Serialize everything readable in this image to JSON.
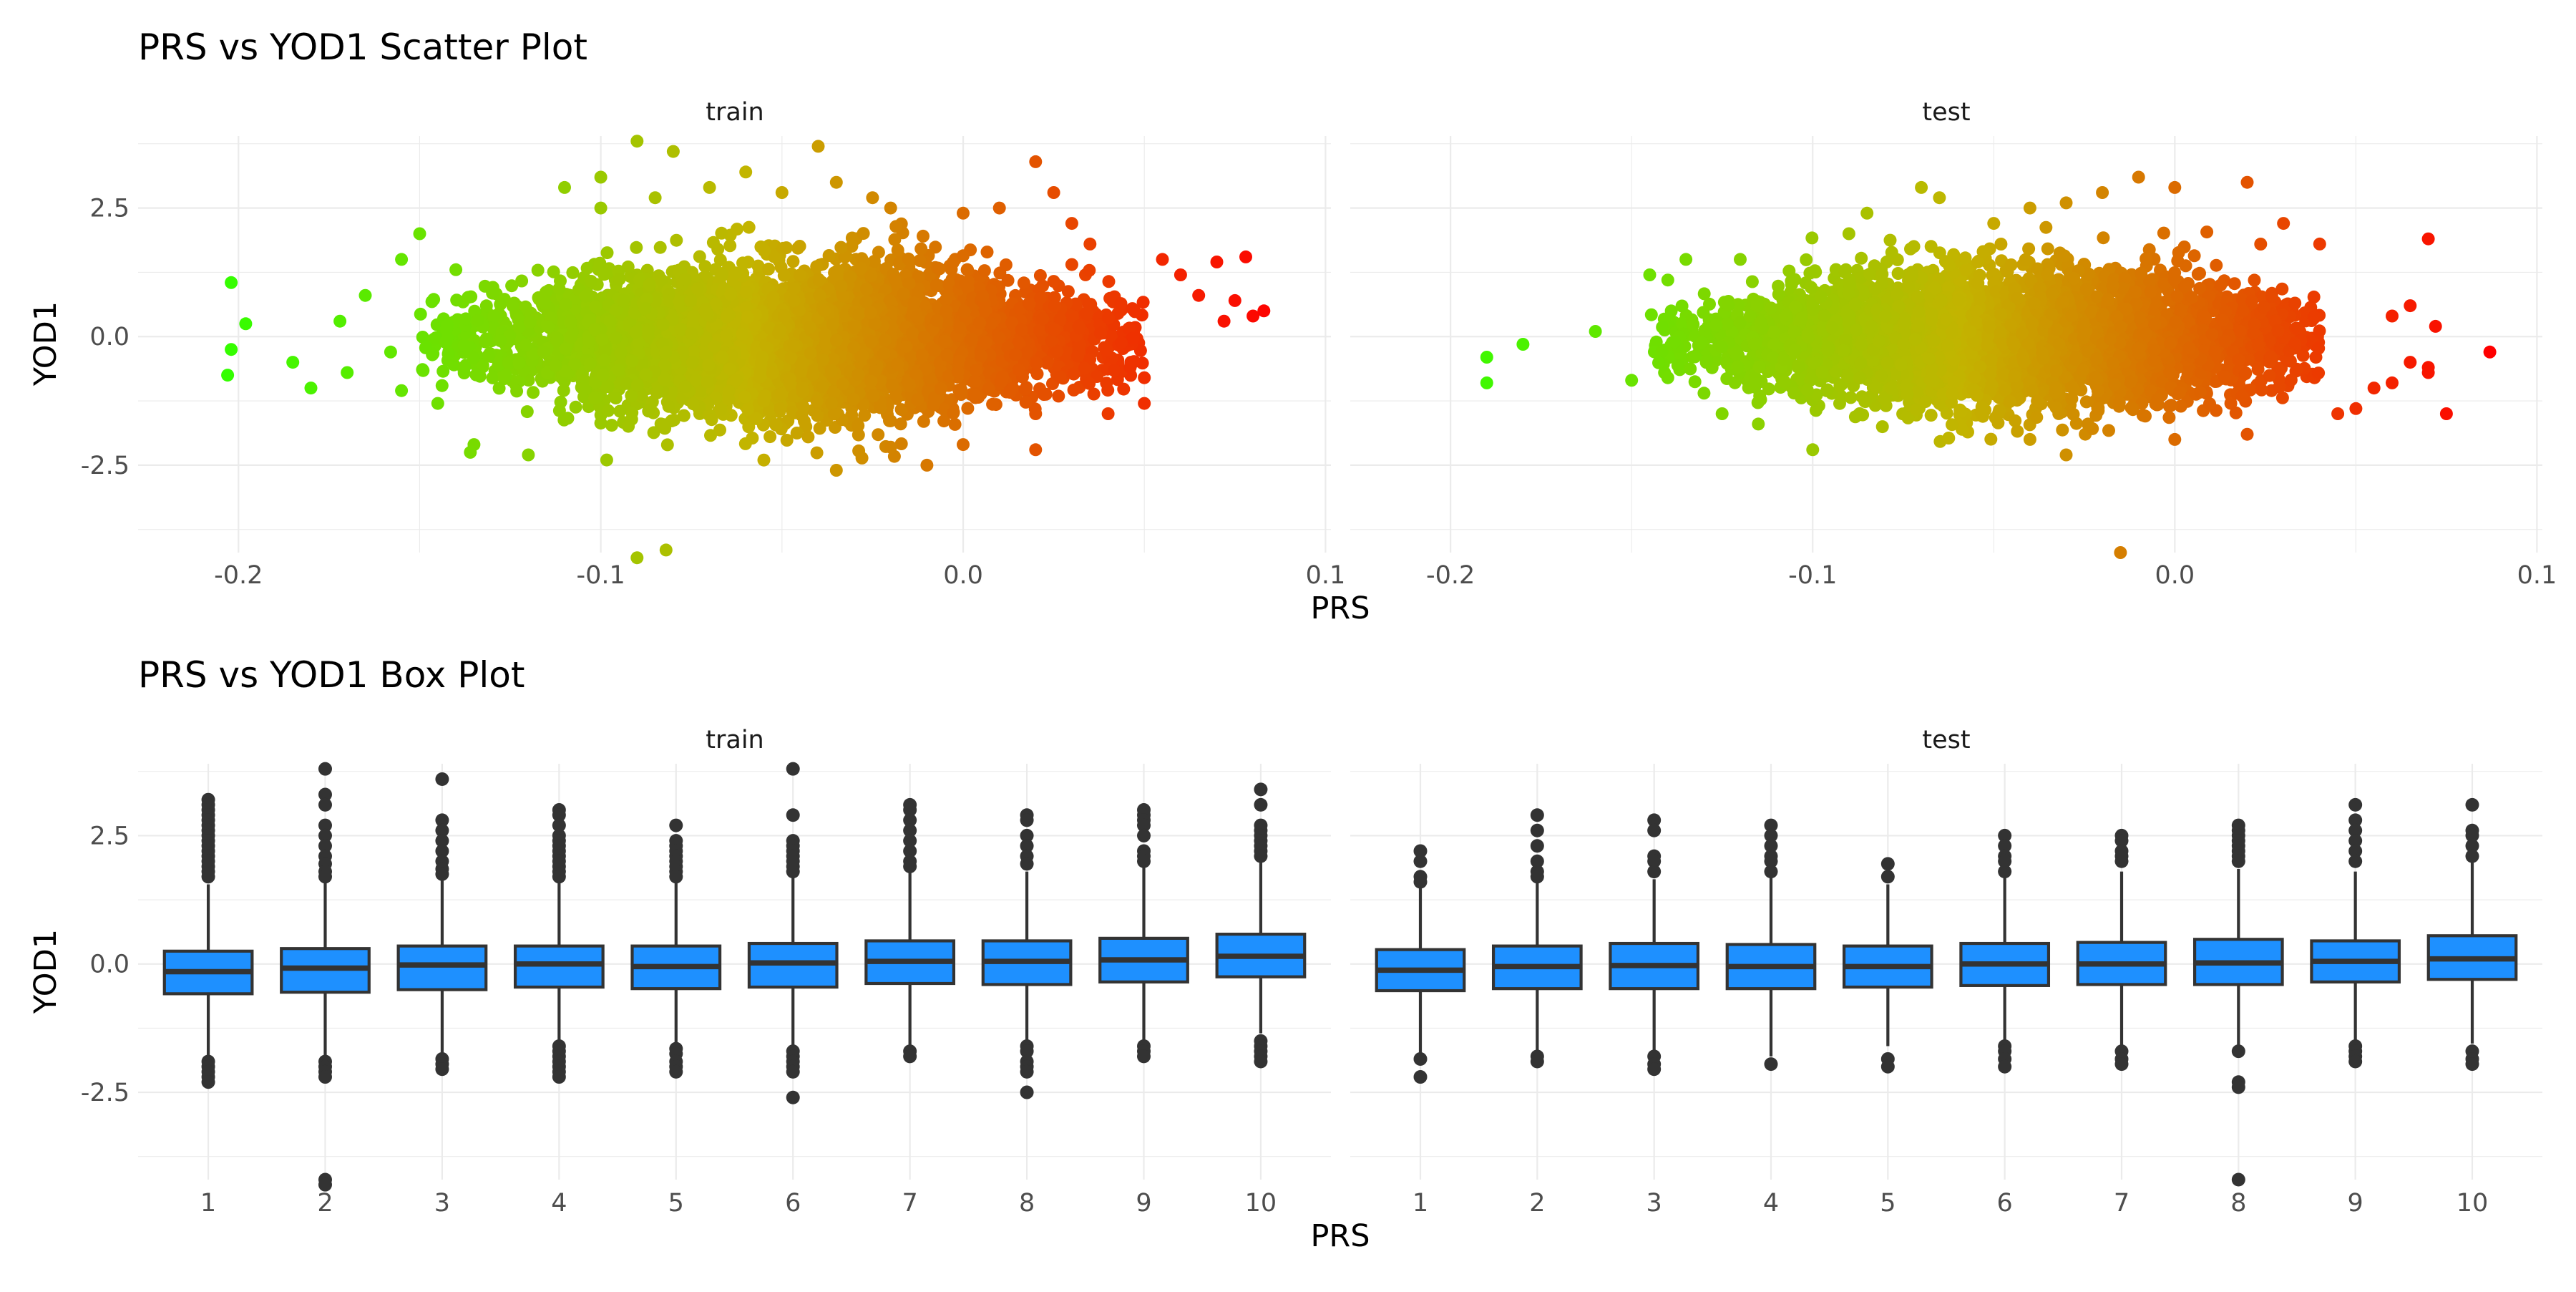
{
  "chart_data": [
    {
      "type": "scatter",
      "title": "PRS vs YOD1 Scatter Plot",
      "xlabel": "PRS",
      "ylabel": "YOD1",
      "color_scale": {
        "low": "#32ff00",
        "mid": "#c3b400",
        "high": "#ff0000"
      },
      "grid": true,
      "legend": "none",
      "panels": [
        {
          "label": "train",
          "xlim": [
            -0.2,
            0.1
          ],
          "ylim": [
            -4.2,
            3.9
          ],
          "x_ticks": [
            -0.2,
            -0.1,
            0.0,
            0.1
          ],
          "x_tick_labels": [
            "-0.2",
            "-0.1",
            "0.0",
            "0.1"
          ],
          "y_ticks": [
            -2.5,
            0.0,
            2.5
          ],
          "y_tick_labels": [
            "-2.5",
            "0.0",
            "2.5"
          ],
          "core_cloud": {
            "x_range": [
              -0.15,
              0.05
            ],
            "x_center": -0.045,
            "y_center": -0.05,
            "y_sd": 0.7
          },
          "points": [
            [
              -0.202,
              1.05
            ],
            [
              -0.198,
              0.25
            ],
            [
              -0.202,
              -0.25
            ],
            [
              -0.203,
              -0.75
            ],
            [
              -0.185,
              -0.5
            ],
            [
              -0.18,
              -1.0
            ],
            [
              -0.17,
              -0.7
            ],
            [
              -0.172,
              0.3
            ],
            [
              -0.165,
              0.8
            ],
            [
              -0.158,
              -0.3
            ],
            [
              -0.155,
              -1.05
            ],
            [
              -0.15,
              2.0
            ],
            [
              -0.155,
              1.5
            ],
            [
              -0.145,
              -1.3
            ],
            [
              -0.14,
              1.3
            ],
            [
              -0.135,
              -2.1
            ],
            [
              -0.136,
              -2.25
            ],
            [
              -0.12,
              -2.3
            ],
            [
              -0.11,
              2.9
            ],
            [
              -0.1,
              3.1
            ],
            [
              -0.1,
              2.5
            ],
            [
              -0.09,
              3.8
            ],
            [
              -0.08,
              3.6
            ],
            [
              -0.085,
              2.7
            ],
            [
              -0.09,
              -4.3
            ],
            [
              -0.082,
              -4.15
            ],
            [
              -0.07,
              2.9
            ],
            [
              -0.06,
              3.2
            ],
            [
              -0.05,
              2.8
            ],
            [
              -0.04,
              3.7
            ],
            [
              -0.035,
              3.0
            ],
            [
              -0.025,
              2.7
            ],
            [
              -0.02,
              2.5
            ],
            [
              -0.035,
              -2.6
            ],
            [
              -0.055,
              -2.4
            ],
            [
              -0.02,
              -2.15
            ],
            [
              -0.01,
              -2.5
            ],
            [
              0.0,
              -2.1
            ],
            [
              0.0,
              2.4
            ],
            [
              0.01,
              2.5
            ],
            [
              0.02,
              3.4
            ],
            [
              0.025,
              2.8
            ],
            [
              0.02,
              -2.2
            ],
            [
              0.02,
              -1.5
            ],
            [
              0.03,
              2.2
            ],
            [
              0.03,
              1.4
            ],
            [
              0.035,
              1.8
            ],
            [
              0.04,
              -1.5
            ],
            [
              0.05,
              -1.3
            ],
            [
              0.05,
              -0.8
            ],
            [
              0.055,
              1.5
            ],
            [
              0.06,
              1.2
            ],
            [
              0.065,
              0.8
            ],
            [
              0.07,
              1.45
            ],
            [
              0.072,
              0.3
            ],
            [
              0.075,
              0.7
            ],
            [
              0.078,
              1.55
            ],
            [
              0.08,
              0.4
            ],
            [
              0.083,
              0.5
            ]
          ]
        },
        {
          "label": "test",
          "xlim": [
            -0.2,
            0.1
          ],
          "ylim": [
            -4.2,
            3.9
          ],
          "x_ticks": [
            -0.2,
            -0.1,
            0.0,
            0.1
          ],
          "x_tick_labels": [
            "-0.2",
            "-0.1",
            "0.0",
            "0.1"
          ],
          "y_ticks": [
            -2.5,
            0.0,
            2.5
          ],
          "y_tick_labels": [
            "-2.5",
            "0.0",
            "2.5"
          ],
          "core_cloud": {
            "x_range": [
              -0.145,
              0.04
            ],
            "x_center": -0.045,
            "y_center": -0.05,
            "y_sd": 0.65
          },
          "points": [
            [
              -0.19,
              -0.4
            ],
            [
              -0.19,
              -0.9
            ],
            [
              -0.18,
              -0.15
            ],
            [
              -0.16,
              0.1
            ],
            [
              -0.15,
              -0.85
            ],
            [
              -0.145,
              1.2
            ],
            [
              -0.14,
              1.1
            ],
            [
              -0.135,
              1.5
            ],
            [
              -0.14,
              -0.8
            ],
            [
              -0.13,
              -1.1
            ],
            [
              -0.125,
              -1.5
            ],
            [
              -0.12,
              1.5
            ],
            [
              -0.115,
              -1.7
            ],
            [
              -0.1,
              -2.2
            ],
            [
              -0.09,
              2.0
            ],
            [
              -0.085,
              2.4
            ],
            [
              -0.07,
              2.9
            ],
            [
              -0.065,
              2.7
            ],
            [
              -0.05,
              2.2
            ],
            [
              -0.04,
              2.5
            ],
            [
              -0.03,
              2.6
            ],
            [
              -0.02,
              2.8
            ],
            [
              -0.01,
              3.1
            ],
            [
              0.0,
              2.9
            ],
            [
              0.02,
              3.0
            ],
            [
              -0.04,
              -2.0
            ],
            [
              -0.03,
              -2.3
            ],
            [
              -0.015,
              -4.2
            ],
            [
              0.0,
              -2.0
            ],
            [
              0.02,
              -1.9
            ],
            [
              0.03,
              2.2
            ],
            [
              0.04,
              1.8
            ],
            [
              0.045,
              -1.5
            ],
            [
              0.05,
              -1.4
            ],
            [
              0.055,
              -1.0
            ],
            [
              0.06,
              -0.9
            ],
            [
              0.065,
              -0.5
            ],
            [
              0.07,
              1.9
            ],
            [
              0.07,
              -0.7
            ],
            [
              0.072,
              0.2
            ],
            [
              0.075,
              -1.5
            ],
            [
              0.087,
              -0.3
            ],
            [
              0.07,
              -0.6
            ],
            [
              0.065,
              0.6
            ],
            [
              0.06,
              0.4
            ]
          ]
        }
      ]
    },
    {
      "type": "box",
      "title": "PRS vs YOD1 Box Plot",
      "xlabel": "PRS",
      "ylabel": "YOD1",
      "fill": "#1e90ff",
      "grid": true,
      "legend": "none",
      "categories": [
        "1",
        "2",
        "3",
        "4",
        "5",
        "6",
        "7",
        "8",
        "9",
        "10"
      ],
      "panels": [
        {
          "label": "train",
          "ylim": [
            -4.2,
            3.9
          ],
          "y_ticks": [
            -2.5,
            0.0,
            2.5
          ],
          "y_tick_labels": [
            "-2.5",
            "0.0",
            "2.5"
          ],
          "boxes": [
            {
              "q1": -0.58,
              "median": -0.15,
              "q3": 0.25,
              "lo": -1.8,
              "hi": 1.55,
              "outliers": [
                3.2,
                3.1,
                3.0,
                2.9,
                2.8,
                2.7,
                2.6,
                2.5,
                2.4,
                2.3,
                2.2,
                2.1,
                2.0,
                1.9,
                1.8,
                1.7,
                -1.9,
                -2.0,
                -2.1,
                -2.2,
                -2.3
              ]
            },
            {
              "q1": -0.55,
              "median": -0.08,
              "q3": 0.3,
              "lo": -1.85,
              "hi": 1.6,
              "outliers": [
                3.8,
                3.3,
                3.1,
                2.7,
                2.5,
                2.3,
                2.1,
                1.95,
                1.8,
                1.7,
                -1.9,
                -2.0,
                -2.1,
                -2.2,
                -4.2,
                -4.3
              ]
            },
            {
              "q1": -0.5,
              "median": -0.02,
              "q3": 0.35,
              "lo": -1.75,
              "hi": 1.65,
              "outliers": [
                3.6,
                2.8,
                2.6,
                2.4,
                2.2,
                2.0,
                1.85,
                1.75,
                -1.85,
                -1.95,
                -2.05
              ]
            },
            {
              "q1": -0.45,
              "median": 0.0,
              "q3": 0.35,
              "lo": -1.55,
              "hi": 1.6,
              "outliers": [
                3.0,
                2.9,
                2.7,
                2.5,
                2.4,
                2.3,
                2.2,
                2.1,
                2.0,
                1.9,
                1.8,
                1.7,
                -1.6,
                -1.7,
                -1.8,
                -1.9,
                -2.0,
                -2.1,
                -2.2
              ]
            },
            {
              "q1": -0.48,
              "median": -0.05,
              "q3": 0.35,
              "lo": -1.6,
              "hi": 1.65,
              "outliers": [
                2.7,
                2.4,
                2.3,
                2.2,
                2.1,
                2.0,
                1.9,
                1.8,
                1.7,
                -1.65,
                -1.75,
                -1.9,
                -2.0,
                -2.1
              ]
            },
            {
              "q1": -0.45,
              "median": 0.02,
              "q3": 0.4,
              "lo": -1.6,
              "hi": 1.75,
              "outliers": [
                3.8,
                2.9,
                2.4,
                2.3,
                2.2,
                2.1,
                2.0,
                1.9,
                1.8,
                -1.7,
                -1.8,
                -1.9,
                -2.0,
                -2.1,
                -2.6
              ]
            },
            {
              "q1": -0.38,
              "median": 0.05,
              "q3": 0.45,
              "lo": -1.6,
              "hi": 1.8,
              "outliers": [
                3.1,
                3.0,
                2.8,
                2.6,
                2.4,
                2.2,
                2.0,
                1.9,
                -1.7,
                -1.8
              ]
            },
            {
              "q1": -0.4,
              "median": 0.05,
              "q3": 0.45,
              "lo": -1.55,
              "hi": 1.8,
              "outliers": [
                2.9,
                2.8,
                2.5,
                2.3,
                2.1,
                1.95,
                -1.6,
                -1.7,
                -1.9,
                -2.0,
                -2.1,
                -2.5
              ]
            },
            {
              "q1": -0.35,
              "median": 0.08,
              "q3": 0.5,
              "lo": -1.55,
              "hi": 1.9,
              "outliers": [
                3.0,
                2.9,
                2.8,
                2.7,
                2.5,
                2.2,
                2.1,
                2.0,
                -1.6,
                -1.7,
                -1.8
              ]
            },
            {
              "q1": -0.25,
              "median": 0.15,
              "q3": 0.58,
              "lo": -1.35,
              "hi": 2.0,
              "outliers": [
                3.4,
                3.1,
                2.7,
                2.6,
                2.5,
                2.4,
                2.3,
                2.2,
                2.1,
                -1.5,
                -1.6,
                -1.7,
                -1.8,
                -1.9
              ]
            }
          ]
        },
        {
          "label": "test",
          "ylim": [
            -4.2,
            3.9
          ],
          "y_ticks": [
            -2.5,
            0.0,
            2.5
          ],
          "y_tick_labels": [
            "-2.5",
            "0.0",
            "2.5"
          ],
          "boxes": [
            {
              "q1": -0.52,
              "median": -0.12,
              "q3": 0.28,
              "lo": -1.75,
              "hi": 1.5,
              "outliers": [
                2.2,
                2.0,
                1.7,
                1.6,
                -1.85,
                -2.2
              ]
            },
            {
              "q1": -0.48,
              "median": -0.05,
              "q3": 0.35,
              "lo": -1.7,
              "hi": 1.6,
              "outliers": [
                2.9,
                2.6,
                2.3,
                2.0,
                1.8,
                1.7,
                -1.8,
                -1.9
              ]
            },
            {
              "q1": -0.48,
              "median": -0.03,
              "q3": 0.4,
              "lo": -1.75,
              "hi": 1.65,
              "outliers": [
                2.8,
                2.6,
                2.1,
                2.0,
                1.8,
                -1.8,
                -1.95,
                -2.05
              ]
            },
            {
              "q1": -0.48,
              "median": -0.05,
              "q3": 0.38,
              "lo": -1.8,
              "hi": 1.7,
              "outliers": [
                2.7,
                2.5,
                2.3,
                2.1,
                2.0,
                1.8,
                -1.95
              ]
            },
            {
              "q1": -0.45,
              "median": -0.05,
              "q3": 0.35,
              "lo": -1.6,
              "hi": 1.55,
              "outliers": [
                1.95,
                1.7,
                -1.85,
                -2.0
              ]
            },
            {
              "q1": -0.42,
              "median": 0.0,
              "q3": 0.4,
              "lo": -1.55,
              "hi": 1.7,
              "outliers": [
                2.5,
                2.3,
                2.1,
                2.0,
                1.8,
                -1.6,
                -1.7,
                -1.85,
                -2.0
              ]
            },
            {
              "q1": -0.4,
              "median": 0.0,
              "q3": 0.42,
              "lo": -1.6,
              "hi": 1.8,
              "outliers": [
                2.5,
                2.4,
                2.2,
                2.1,
                2.0,
                -1.7,
                -1.85,
                -1.95
              ]
            },
            {
              "q1": -0.4,
              "median": 0.02,
              "q3": 0.48,
              "lo": -1.6,
              "hi": 1.85,
              "outliers": [
                2.7,
                2.6,
                2.5,
                2.4,
                2.3,
                2.2,
                2.1,
                2.0,
                -1.7,
                -2.3,
                -2.4,
                -4.2
              ]
            },
            {
              "q1": -0.35,
              "median": 0.05,
              "q3": 0.45,
              "lo": -1.55,
              "hi": 1.8,
              "outliers": [
                3.1,
                2.8,
                2.6,
                2.4,
                2.2,
                2.0,
                -1.6,
                -1.7,
                -1.8,
                -1.9
              ]
            },
            {
              "q1": -0.3,
              "median": 0.1,
              "q3": 0.55,
              "lo": -1.55,
              "hi": 2.0,
              "outliers": [
                3.1,
                2.6,
                2.5,
                2.3,
                2.1,
                -1.7,
                -1.85,
                -1.95
              ]
            }
          ]
        }
      ]
    }
  ]
}
